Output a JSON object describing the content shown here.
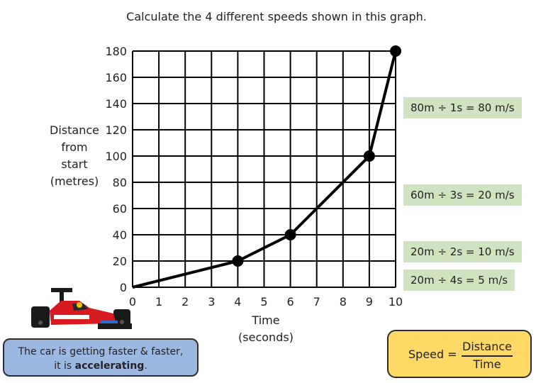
{
  "title": "Calculate the 4 different speeds shown in this graph.",
  "chart_data": {
    "type": "line",
    "ylabel_lines": [
      "Distance",
      "from",
      "start",
      "(metres)"
    ],
    "xlabel_lines": [
      "Time",
      "(seconds)"
    ],
    "xlim": [
      0,
      10
    ],
    "ylim": [
      0,
      180
    ],
    "x_ticks": [
      0,
      1,
      2,
      3,
      4,
      5,
      6,
      7,
      8,
      9,
      10
    ],
    "y_ticks": [
      0,
      20,
      40,
      60,
      80,
      100,
      120,
      140,
      160,
      180
    ],
    "grid": true,
    "points": [
      {
        "x": 0,
        "y": 0
      },
      {
        "x": 4,
        "y": 20
      },
      {
        "x": 6,
        "y": 40
      },
      {
        "x": 9,
        "y": 100
      },
      {
        "x": 10,
        "y": 180
      }
    ],
    "marker_points": [
      1,
      2,
      3,
      4
    ],
    "line_color": "#000000"
  },
  "annotations": [
    "80m ÷ 1s = 80 m/s",
    "60m ÷ 3s = 20 m/s",
    "20m ÷ 2s = 10 m/s",
    "20m ÷ 4s = 5 m/s"
  ],
  "note": {
    "line1": "The car is getting faster & faster,",
    "line2_prefix": "it is",
    "line2_emph": "accelerating",
    "line2_suffix": "."
  },
  "formula": {
    "lhs": "Speed =",
    "numerator": "Distance",
    "denominator": "Time"
  },
  "colors": {
    "annotation_bg": "#cfe3c0",
    "note_bg": "#9db7e3",
    "formula_bg": "#ffd966"
  },
  "icons": {
    "car": "formula-one-car-icon"
  }
}
